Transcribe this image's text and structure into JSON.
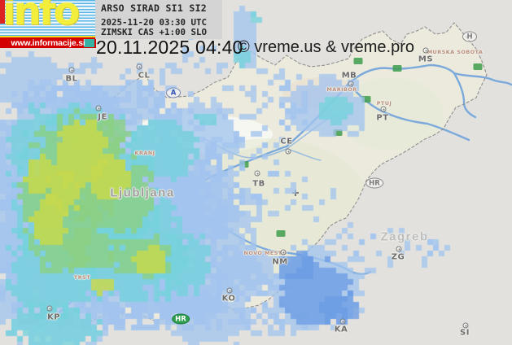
{
  "branding": {
    "logo_text": "info",
    "banner_url": "www.informacije.si",
    "logo_color": "#f2ee3b",
    "banner_bg": "#d40000"
  },
  "header": {
    "product": "ARSO SIRAD SI1 SI2",
    "utc_time": "2025-11-20 03:30 UTC",
    "time_note": "ZIMSKI CAS +1:00 SLO",
    "local_time": "20.11.2025 04:40",
    "credit": "© vreme.us & vreme.pro"
  },
  "map": {
    "big_labels": [
      {
        "text": "Ljubljana"
      },
      {
        "text": "Zagreb"
      }
    ],
    "city_names": [
      {
        "text": "KRANJ"
      },
      {
        "text": "MARIBOR"
      },
      {
        "text": "PTUJ"
      },
      {
        "text": "MURSKA SOBOTA"
      },
      {
        "text": "NOVO MESTO"
      },
      {
        "text": "TRST"
      }
    ],
    "cities": [
      {
        "code": "BL"
      },
      {
        "code": "CL"
      },
      {
        "code": "JE"
      },
      {
        "code": "CE"
      },
      {
        "code": "TB"
      },
      {
        "code": "MB"
      },
      {
        "code": "PT"
      },
      {
        "code": "MS"
      },
      {
        "code": "NM"
      },
      {
        "code": "KO"
      },
      {
        "code": "KA"
      },
      {
        "code": "ZG"
      },
      {
        "code": "SI"
      },
      {
        "code": "KP"
      }
    ],
    "country_badges": [
      {
        "code": "A"
      },
      {
        "code": "H"
      },
      {
        "code": "HR"
      },
      {
        "code": "HR"
      }
    ]
  },
  "radar": {
    "palette": {
      "rain_very_light": "#a3c4ee",
      "rain_core_blue": "#6b9ce4",
      "rain_moderate": "#74d2dd",
      "rain_heavy": "#8ccf82",
      "rain_intense": "#c6d94f"
    },
    "road_color": "#6fa3dc",
    "border_color": "#8f8f8f"
  }
}
